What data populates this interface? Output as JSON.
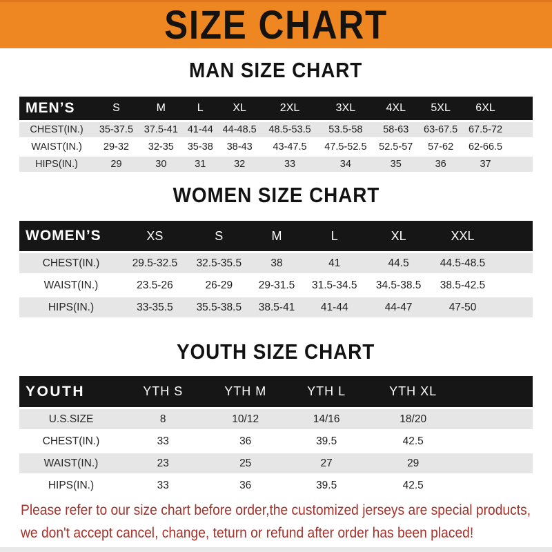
{
  "banner": {
    "title": "SIZE CHART"
  },
  "sections": [
    {
      "title": "MAN SIZE CHART",
      "header_label": "MEN’S",
      "columns": [
        "S",
        "M",
        "L",
        "XL",
        "2XL",
        "3XL",
        "4XL",
        "5XL",
        "6XL"
      ],
      "rows": [
        {
          "label": "CHEST(IN.)",
          "values": [
            "35-37.5",
            "37.5-41",
            "41-44",
            "44-48.5",
            "48.5-53.5",
            "53.5-58",
            "58-63",
            "63-67.5",
            "67.5-72"
          ]
        },
        {
          "label": "WAIST(IN.)",
          "values": [
            "29-32",
            "32-35",
            "35-38",
            "38-43",
            "43-47.5",
            "47.5-52.5",
            "52.5-57",
            "57-62",
            "62-66.5"
          ]
        },
        {
          "label": "HIPS(IN.)",
          "values": [
            "29",
            "30",
            "31",
            "32",
            "33",
            "34",
            "35",
            "36",
            "37"
          ]
        }
      ]
    },
    {
      "title": "WOMEN SIZE CHART",
      "header_label": "WOMEN’S",
      "columns": [
        "XS",
        "S",
        "M",
        "L",
        "XL",
        "XXL"
      ],
      "rows": [
        {
          "label": "CHEST(IN.)",
          "values": [
            "29.5-32.5",
            "32.5-35.5",
            "38",
            "41",
            "44.5",
            "44.5-48.5"
          ]
        },
        {
          "label": "WAIST(IN.)",
          "values": [
            "23.5-26",
            "26-29",
            "29-31.5",
            "31.5-34.5",
            "34.5-38.5",
            "38.5-42.5"
          ]
        },
        {
          "label": "HIPS(IN.)",
          "values": [
            "33-35.5",
            "35.5-38.5",
            "38.5-41",
            "41-44",
            "44-47",
            "47-50"
          ]
        }
      ]
    },
    {
      "title": "YOUTH SIZE CHART",
      "header_label": "YOUTH",
      "columns": [
        "YTH S",
        "YTH M",
        "YTH L",
        "YTH XL"
      ],
      "rows": [
        {
          "label": "U.S.SIZE",
          "values": [
            "8",
            "10/12",
            "14/16",
            "18/20"
          ]
        },
        {
          "label": "CHEST(IN.)",
          "values": [
            "33",
            "36",
            "39.5",
            "42.5"
          ]
        },
        {
          "label": "WAIST(IN.)",
          "values": [
            "23",
            "25",
            "27",
            "29"
          ]
        },
        {
          "label": "HIPS(IN.)",
          "values": [
            "33",
            "36",
            "39.5",
            "42.5"
          ]
        }
      ]
    }
  ],
  "disclaimer": {
    "line1": "Please refer to our size chart before order,the customized jerseys are special products,",
    "line2": "we don't accept cancel, change, teturn or refund after order has been placed!"
  },
  "colors": {
    "banner_bg": "#ee8622",
    "header_bar": "#161616",
    "row_shade": "#e6e6e6",
    "disclaimer_text": "#a3322a"
  }
}
